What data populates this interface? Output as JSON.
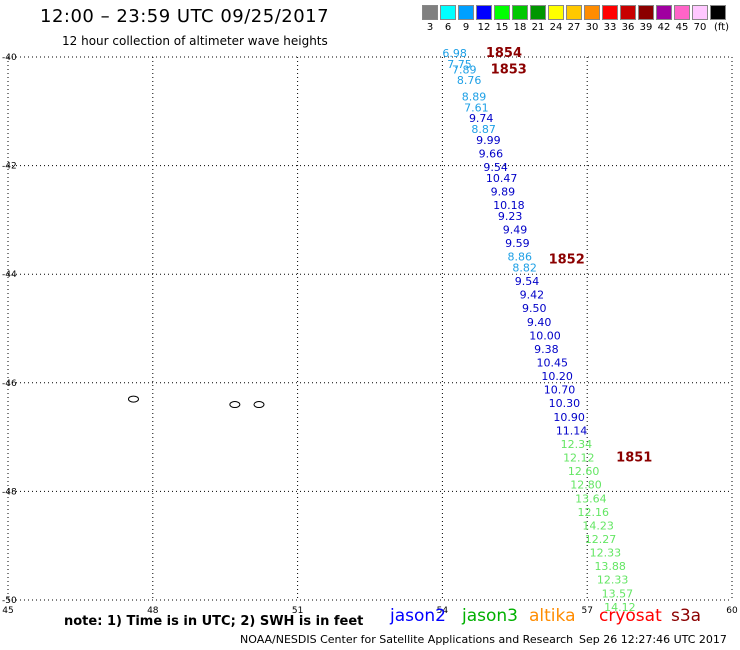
{
  "header": {
    "title": "12:00 – 23:59 UTC 09/25/2017",
    "subtitle": "12 hour collection of altimeter wave heights"
  },
  "color_scale": {
    "unit": "(ft)",
    "stops": [
      {
        "label": "3",
        "color": "#808080"
      },
      {
        "label": "6",
        "color": "#00ffff"
      },
      {
        "label": "9",
        "color": "#00a0ff"
      },
      {
        "label": "12",
        "color": "#0000ff"
      },
      {
        "label": "15",
        "color": "#00ff00"
      },
      {
        "label": "18",
        "color": "#00c800"
      },
      {
        "label": "21",
        "color": "#009600"
      },
      {
        "label": "24",
        "color": "#ffff00"
      },
      {
        "label": "27",
        "color": "#ffc800"
      },
      {
        "label": "30",
        "color": "#ff8c00"
      },
      {
        "label": "33",
        "color": "#ff0000"
      },
      {
        "label": "36",
        "color": "#c80000"
      },
      {
        "label": "39",
        "color": "#8b0000"
      },
      {
        "label": "42",
        "color": "#a000a0"
      },
      {
        "label": "45",
        "color": "#ff64c8"
      },
      {
        "label": "70",
        "color": "#ffc8ff"
      },
      {
        "label": "",
        "color": "#000000"
      }
    ]
  },
  "map": {
    "lon_range": [
      45,
      60
    ],
    "lat_range": [
      -50,
      -40
    ],
    "lon_ticks": [
      "45",
      "48",
      "51",
      "54",
      "57",
      "60"
    ],
    "lat_ticks": [
      "-40",
      "-42",
      "-44",
      "-46",
      "-48",
      "-50"
    ],
    "grid": "dotted",
    "islands": [
      {
        "name": "",
        "lon": 47.6,
        "lat": -46.3
      },
      {
        "name": "",
        "lon": 49.7,
        "lat": -46.4
      },
      {
        "name": "",
        "lon": 50.2,
        "lat": -46.4
      }
    ]
  },
  "pass_labels": [
    {
      "text": "1854",
      "lon": 54.9,
      "lat": -40.0,
      "color": "#8b0000"
    },
    {
      "text": "1853",
      "lon": 55.0,
      "lat": -40.3,
      "color": "#8b0000"
    },
    {
      "text": "1852",
      "lon": 56.2,
      "lat": -43.8,
      "color": "#8b0000"
    },
    {
      "text": "1851",
      "lon": 57.6,
      "lat": -47.45,
      "color": "#8b0000"
    }
  ],
  "observations": [
    {
      "value": "6.98",
      "lon": 54.0,
      "lat": -40.0,
      "mission": "jason3"
    },
    {
      "value": "7.75",
      "lon": 54.1,
      "lat": -40.2,
      "mission": "jason3"
    },
    {
      "value": "7.89",
      "lon": 54.2,
      "lat": -40.3,
      "mission": "jason3"
    },
    {
      "value": "8.76",
      "lon": 54.3,
      "lat": -40.5,
      "mission": "jason3"
    },
    {
      "value": "8.89",
      "lon": 54.4,
      "lat": -40.8,
      "mission": "jason3"
    },
    {
      "value": "7.61",
      "lon": 54.45,
      "lat": -41.0,
      "mission": "jason3"
    },
    {
      "value": "9.74",
      "lon": 54.55,
      "lat": -41.2,
      "mission": "jason2"
    },
    {
      "value": "8.87",
      "lon": 54.6,
      "lat": -41.4,
      "mission": "jason3"
    },
    {
      "value": "9.99",
      "lon": 54.7,
      "lat": -41.6,
      "mission": "jason2"
    },
    {
      "value": "9.66",
      "lon": 54.75,
      "lat": -41.85,
      "mission": "jason2"
    },
    {
      "value": "9.54",
      "lon": 54.85,
      "lat": -42.1,
      "mission": "jason2"
    },
    {
      "value": "10.47",
      "lon": 54.9,
      "lat": -42.3,
      "mission": "jason2"
    },
    {
      "value": "9.89",
      "lon": 55.0,
      "lat": -42.55,
      "mission": "jason2"
    },
    {
      "value": "10.18",
      "lon": 55.05,
      "lat": -42.8,
      "mission": "jason2"
    },
    {
      "value": "9.23",
      "lon": 55.15,
      "lat": -43.0,
      "mission": "jason2"
    },
    {
      "value": "9.49",
      "lon": 55.25,
      "lat": -43.25,
      "mission": "jason2"
    },
    {
      "value": "9.59",
      "lon": 55.3,
      "lat": -43.5,
      "mission": "jason2"
    },
    {
      "value": "8.86",
      "lon": 55.35,
      "lat": -43.75,
      "mission": "jason3"
    },
    {
      "value": "8.82",
      "lon": 55.45,
      "lat": -43.95,
      "mission": "jason3"
    },
    {
      "value": "9.54",
      "lon": 55.5,
      "lat": -44.2,
      "mission": "jason2"
    },
    {
      "value": "9.42",
      "lon": 55.6,
      "lat": -44.45,
      "mission": "jason2"
    },
    {
      "value": "9.50",
      "lon": 55.65,
      "lat": -44.7,
      "mission": "jason2"
    },
    {
      "value": "9.40",
      "lon": 55.75,
      "lat": -44.95,
      "mission": "jason2"
    },
    {
      "value": "10.00",
      "lon": 55.8,
      "lat": -45.2,
      "mission": "jason2"
    },
    {
      "value": "9.38",
      "lon": 55.9,
      "lat": -45.45,
      "mission": "jason2"
    },
    {
      "value": "10.45",
      "lon": 55.95,
      "lat": -45.7,
      "mission": "jason2"
    },
    {
      "value": "10.20",
      "lon": 56.05,
      "lat": -45.95,
      "mission": "jason2"
    },
    {
      "value": "10.70",
      "lon": 56.1,
      "lat": -46.2,
      "mission": "jason2"
    },
    {
      "value": "10.30",
      "lon": 56.2,
      "lat": -46.45,
      "mission": "jason2"
    },
    {
      "value": "10.90",
      "lon": 56.3,
      "lat": -46.7,
      "mission": "jason2"
    },
    {
      "value": "11.14",
      "lon": 56.35,
      "lat": -46.95,
      "mission": "jason2"
    },
    {
      "value": "12.34",
      "lon": 56.45,
      "lat": -47.2,
      "mission": "jason3sat"
    },
    {
      "value": "12.12",
      "lon": 56.5,
      "lat": -47.45,
      "mission": "jason3sat"
    },
    {
      "value": "12.60",
      "lon": 56.6,
      "lat": -47.7,
      "mission": "jason3sat"
    },
    {
      "value": "12.80",
      "lon": 56.65,
      "lat": -47.95,
      "mission": "jason3sat"
    },
    {
      "value": "13.64",
      "lon": 56.75,
      "lat": -48.2,
      "mission": "jason3sat"
    },
    {
      "value": "12.16",
      "lon": 56.8,
      "lat": -48.45,
      "mission": "jason3sat"
    },
    {
      "value": "14.23",
      "lon": 56.9,
      "lat": -48.7,
      "mission": "jason3sat"
    },
    {
      "value": "12.27",
      "lon": 56.95,
      "lat": -48.95,
      "mission": "jason3sat"
    },
    {
      "value": "12.33",
      "lon": 57.05,
      "lat": -49.2,
      "mission": "jason3sat"
    },
    {
      "value": "13.88",
      "lon": 57.15,
      "lat": -49.45,
      "mission": "jason3sat"
    },
    {
      "value": "12.33",
      "lon": 57.2,
      "lat": -49.7,
      "mission": "jason3sat"
    },
    {
      "value": "13.57",
      "lon": 57.3,
      "lat": -49.95,
      "mission": "jason3sat"
    },
    {
      "value": "14.12",
      "lon": 57.35,
      "lat": -50.2,
      "mission": "jason3sat"
    }
  ],
  "mission_colors": {
    "jason2": "#0000c8",
    "jason3": "#1ea0e6",
    "jason3sat": "#64e664"
  },
  "footer": {
    "note": "note: 1) Time is in UTC; 2) SWH is in feet",
    "satellites": [
      {
        "name": "jason2",
        "color": "#0000ff"
      },
      {
        "name": "jason3",
        "color": "#00b000"
      },
      {
        "name": "altika",
        "color": "#ff8c00"
      },
      {
        "name": "cryosat",
        "color": "#ff0000"
      },
      {
        "name": "s3a",
        "color": "#8b0000"
      }
    ],
    "credit": "NOAA/NESDIS Center for Satellite Applications and Research",
    "timestamp": "Sep 26 12:27:46 UTC 2017"
  }
}
